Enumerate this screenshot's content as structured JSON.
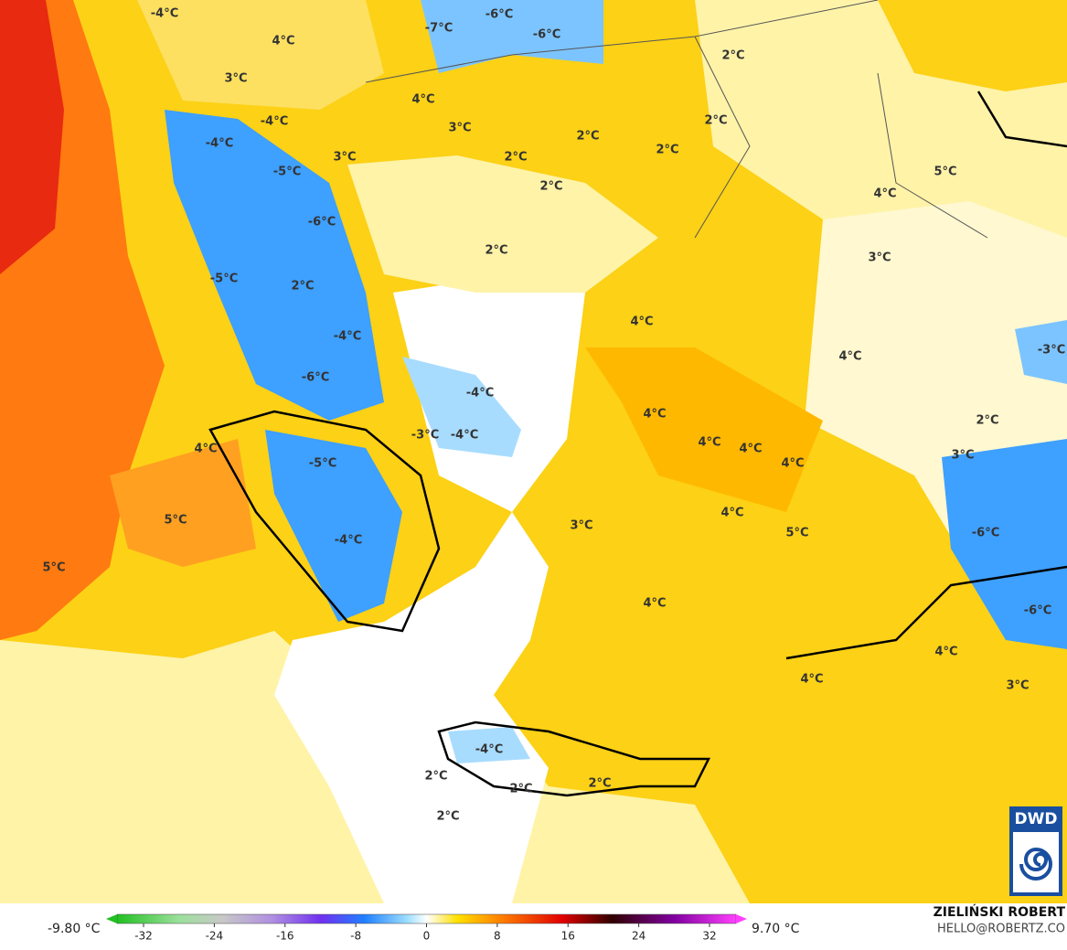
{
  "map": {
    "labels": [
      "-4°C",
      "-7°C",
      "-6°C",
      "-6°C",
      "4°C",
      "3°C",
      "2°C",
      "4°C",
      "3°C",
      "-4°C",
      "-4°C",
      "2°C",
      "2°C",
      "2°C",
      "2°C",
      "3°C",
      "-5°C",
      "2°C",
      "5°C",
      "4°C",
      "-6°C",
      "2°C",
      "3°C",
      "-5°C",
      "2°C",
      "4°C",
      "-4°C",
      "-3°C",
      "4°C",
      "-6°C",
      "-4°C",
      "4°C",
      "2°C",
      "-3°C",
      "-4°C",
      "4°C",
      "4°C",
      "3°C",
      "4°C",
      "4°C",
      "-5°C",
      "4°C",
      "5°C",
      "3°C",
      "5°C",
      "-6°C",
      "-4°C",
      "5°C",
      "4°C",
      "-6°C",
      "4°C",
      "4°C",
      "3°C",
      "-4°C",
      "2°C",
      "2°C",
      "2°C",
      "2°C"
    ]
  },
  "colorbar": {
    "min_label": "-9.80 °C",
    "max_label": "9.70 °C",
    "range": [
      -35,
      35
    ],
    "ticks": [
      -32,
      -24,
      -16,
      -8,
      0,
      8,
      16,
      24,
      32
    ]
  },
  "credits": {
    "author": "ZIELIŃSKI ROBERT",
    "contact": "HELLO@ROBERTZ.CO",
    "logo": "DWD"
  }
}
